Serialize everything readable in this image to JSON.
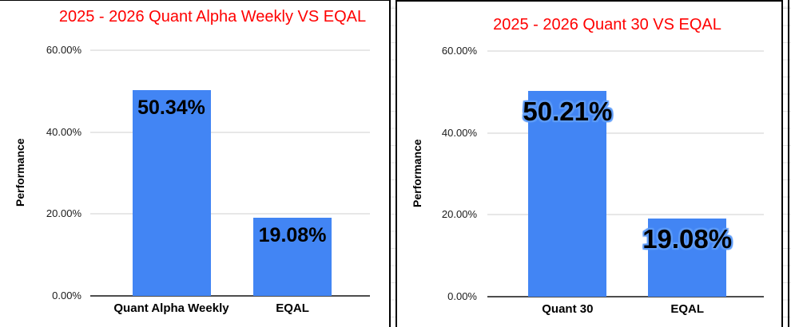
{
  "colors": {
    "bar": "#4285F4",
    "title": "#FF0000",
    "gridline": "#e7e7e7",
    "axis_line": "#4d4d4d",
    "label_halo": "#5e9cf8",
    "row_line": "#e0e0e0",
    "panel_border": "#000000"
  },
  "chart_data": [
    {
      "type": "bar",
      "title": "2025 - 2026 Quant Alpha Weekly VS EQAL",
      "ylabel": "Performance",
      "categories": [
        "Quant Alpha Weekly",
        "EQAL"
      ],
      "values": [
        50.34,
        19.08
      ],
      "value_labels": [
        "50.34%",
        "19.08%"
      ],
      "ylim": [
        0,
        60
      ],
      "grid": true,
      "legend_position": "none",
      "yticks": [
        {
          "value": 0,
          "label": "0.00%"
        },
        {
          "value": 20,
          "label": "20.00%"
        },
        {
          "value": 40,
          "label": "40.00%"
        },
        {
          "value": 60,
          "label": "60.00%"
        }
      ]
    },
    {
      "type": "bar",
      "title": "2025 - 2026 Quant 30 VS EQAL",
      "ylabel": "Performance",
      "categories": [
        "Quant 30",
        "EQAL"
      ],
      "values": [
        50.21,
        19.08
      ],
      "value_labels": [
        "50.21%",
        "19.08%"
      ],
      "ylim": [
        0,
        60
      ],
      "grid": true,
      "legend_position": "none",
      "yticks": [
        {
          "value": 0,
          "label": "0.00%"
        },
        {
          "value": 20,
          "label": "20.00%"
        },
        {
          "value": 40,
          "label": "40.00%"
        },
        {
          "value": 60,
          "label": "60.00%"
        }
      ]
    }
  ]
}
